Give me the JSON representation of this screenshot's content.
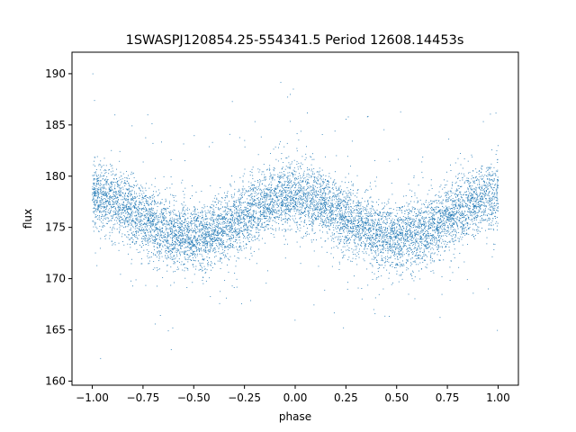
{
  "chart_data": {
    "type": "scatter",
    "title": "1SWASPJ120854.25-554341.5 Period 12608.14453s",
    "xlabel": "phase",
    "ylabel": "flux",
    "xlim": [
      -1.1,
      1.1
    ],
    "ylim": [
      159.6,
      192.1
    ],
    "xticks": [
      -1.0,
      -0.75,
      -0.5,
      -0.25,
      0.0,
      0.25,
      0.5,
      0.75,
      1.0
    ],
    "xtick_labels": [
      "−1.00",
      "−0.75",
      "−0.50",
      "−0.25",
      "0.00",
      "0.25",
      "0.50",
      "0.75",
      "1.00"
    ],
    "yticks": [
      160,
      165,
      170,
      175,
      180,
      185,
      190
    ],
    "ytick_labels": [
      "160",
      "165",
      "170",
      "175",
      "180",
      "185",
      "190"
    ],
    "grid": false,
    "legend": "none",
    "point_color": "#1f77b4",
    "series": [
      {
        "description_of_trend": "phase-folded light curve, sinusoidal with two cycles over phase -1..1",
        "mean_flux": 176.0,
        "amplitude": 2.0,
        "maxima_phase": [
          -1.0,
          0.0,
          1.0
        ],
        "minima_phase": [
          -0.5,
          0.5
        ],
        "x_sample": [
          -1.0,
          -0.75,
          -0.5,
          -0.25,
          0.0,
          0.25,
          0.5,
          0.75,
          1.0
        ],
        "y_sample": [
          178.0,
          176.0,
          174.0,
          176.0,
          178.0,
          176.0,
          174.0,
          176.0,
          178.0
        ],
        "point_count": 9000
      }
    ]
  }
}
